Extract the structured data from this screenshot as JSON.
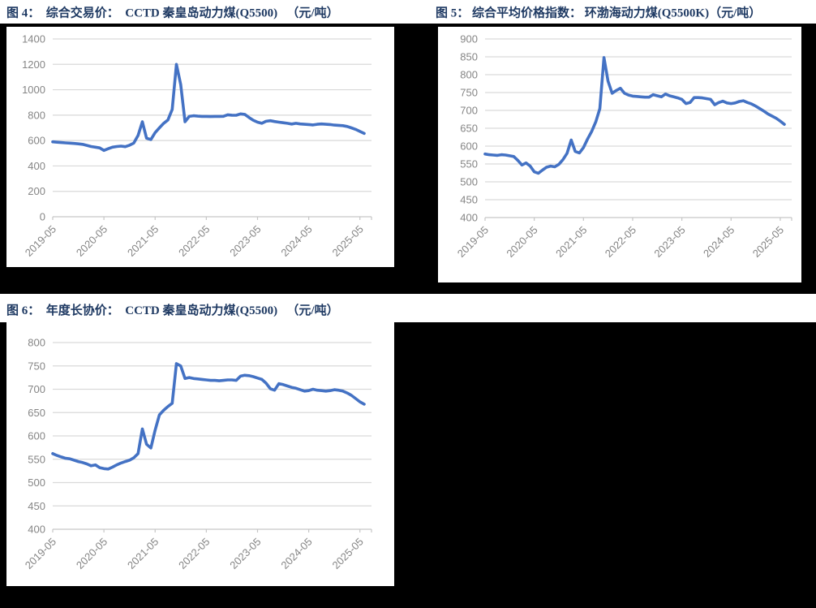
{
  "page": {
    "background_color": "#000000",
    "panel_color": "#ffffff",
    "title_color": "#1f3a63",
    "line_color": "#4472c4",
    "grid_color": "#d9d9d9",
    "axis_color": "#c6c6c6",
    "tick_label_color": "#858585"
  },
  "figures": [
    {
      "id": "fig4",
      "title": "图 4：  综合交易价：  CCTD 秦皇岛动力煤(Q5500)   （元/吨）"
    },
    {
      "id": "fig5",
      "title": "图 5： 综合平均价格指数： 环渤海动力煤(Q5500K)（元/吨）"
    },
    {
      "id": "fig6",
      "title": "图 6：  年度长协价：  CCTD 秦皇岛动力煤(Q5500)   （元/吨）"
    }
  ],
  "chart_data": [
    {
      "type": "line",
      "title": "图 4: 综合交易价: CCTD 秦皇岛动力煤(Q5500)（元/吨）",
      "x_interval": "monthly",
      "x_start": "2019-05",
      "x_end": "2025-06",
      "x_tick_labels": [
        "2019-05",
        "2020-05",
        "2021-05",
        "2022-05",
        "2023-05",
        "2024-05",
        "2025-05"
      ],
      "x_tick_indices": [
        0,
        12,
        24,
        36,
        48,
        60,
        72
      ],
      "ylim": [
        0,
        1400
      ],
      "ytick_step": 200,
      "grid": true,
      "legend": "none",
      "line_color": "#4472c4",
      "series": [
        {
          "name": "综合交易价",
          "values": [
            590,
            587,
            584,
            582,
            580,
            577,
            574,
            570,
            562,
            553,
            548,
            542,
            522,
            536,
            548,
            553,
            556,
            552,
            563,
            580,
            640,
            748,
            618,
            608,
            662,
            700,
            736,
            762,
            845,
            1200,
            1040,
            748,
            790,
            795,
            792,
            790,
            790,
            789,
            790,
            790,
            791,
            803,
            800,
            799,
            810,
            806,
            782,
            760,
            745,
            736,
            752,
            756,
            750,
            745,
            740,
            736,
            730,
            736,
            731,
            728,
            726,
            723,
            728,
            731,
            728,
            726,
            722,
            720,
            717,
            711,
            700,
            688,
            672,
            656
          ]
        }
      ]
    },
    {
      "type": "line",
      "title": "图 5: 综合平均价格指数: 环渤海动力煤(Q5500K)（元/吨）",
      "x_interval": "monthly",
      "x_start": "2019-05",
      "x_end": "2025-06",
      "x_tick_labels": [
        "2019-05",
        "2020-05",
        "2021-05",
        "2022-05",
        "2023-05",
        "2024-05",
        "2025-05"
      ],
      "x_tick_indices": [
        0,
        12,
        24,
        36,
        48,
        60,
        72
      ],
      "ylim": [
        400,
        900
      ],
      "ytick_step": 50,
      "grid": true,
      "legend": "none",
      "line_color": "#4472c4",
      "series": [
        {
          "name": "综合平均价格指数",
          "values": [
            578,
            576,
            575,
            574,
            576,
            575,
            573,
            571,
            560,
            547,
            553,
            544,
            528,
            524,
            533,
            541,
            544,
            542,
            549,
            562,
            580,
            617,
            585,
            581,
            596,
            620,
            641,
            668,
            705,
            848,
            782,
            748,
            756,
            762,
            748,
            743,
            740,
            739,
            738,
            737,
            737,
            744,
            741,
            738,
            746,
            741,
            738,
            735,
            731,
            719,
            722,
            736,
            736,
            735,
            733,
            731,
            716,
            722,
            726,
            721,
            719,
            721,
            725,
            727,
            722,
            718,
            712,
            705,
            698,
            690,
            684,
            678,
            670,
            661
          ]
        }
      ]
    },
    {
      "type": "line",
      "title": "图 6: 年度长协价: CCTD 秦皇岛动力煤(Q5500)（元/吨）",
      "x_interval": "monthly",
      "x_start": "2019-05",
      "x_end": "2025-06",
      "x_tick_labels": [
        "2019-05",
        "2020-05",
        "2021-05",
        "2022-05",
        "2023-05",
        "2024-05",
        "2025-05"
      ],
      "x_tick_indices": [
        0,
        12,
        24,
        36,
        48,
        60,
        72
      ],
      "ylim": [
        400,
        800
      ],
      "ytick_step": 50,
      "grid": true,
      "legend": "none",
      "line_color": "#4472c4",
      "series": [
        {
          "name": "年度长协价",
          "values": [
            562,
            558,
            555,
            552,
            551,
            548,
            545,
            543,
            540,
            536,
            538,
            532,
            530,
            529,
            533,
            538,
            542,
            545,
            548,
            553,
            562,
            615,
            582,
            574,
            612,
            645,
            655,
            663,
            670,
            755,
            750,
            723,
            725,
            723,
            722,
            721,
            720,
            719,
            719,
            718,
            719,
            720,
            720,
            719,
            728,
            730,
            729,
            727,
            724,
            721,
            713,
            701,
            698,
            712,
            710,
            707,
            704,
            702,
            699,
            696,
            697,
            700,
            698,
            697,
            696,
            697,
            699,
            698,
            696,
            692,
            687,
            680,
            673,
            668
          ]
        }
      ]
    }
  ]
}
